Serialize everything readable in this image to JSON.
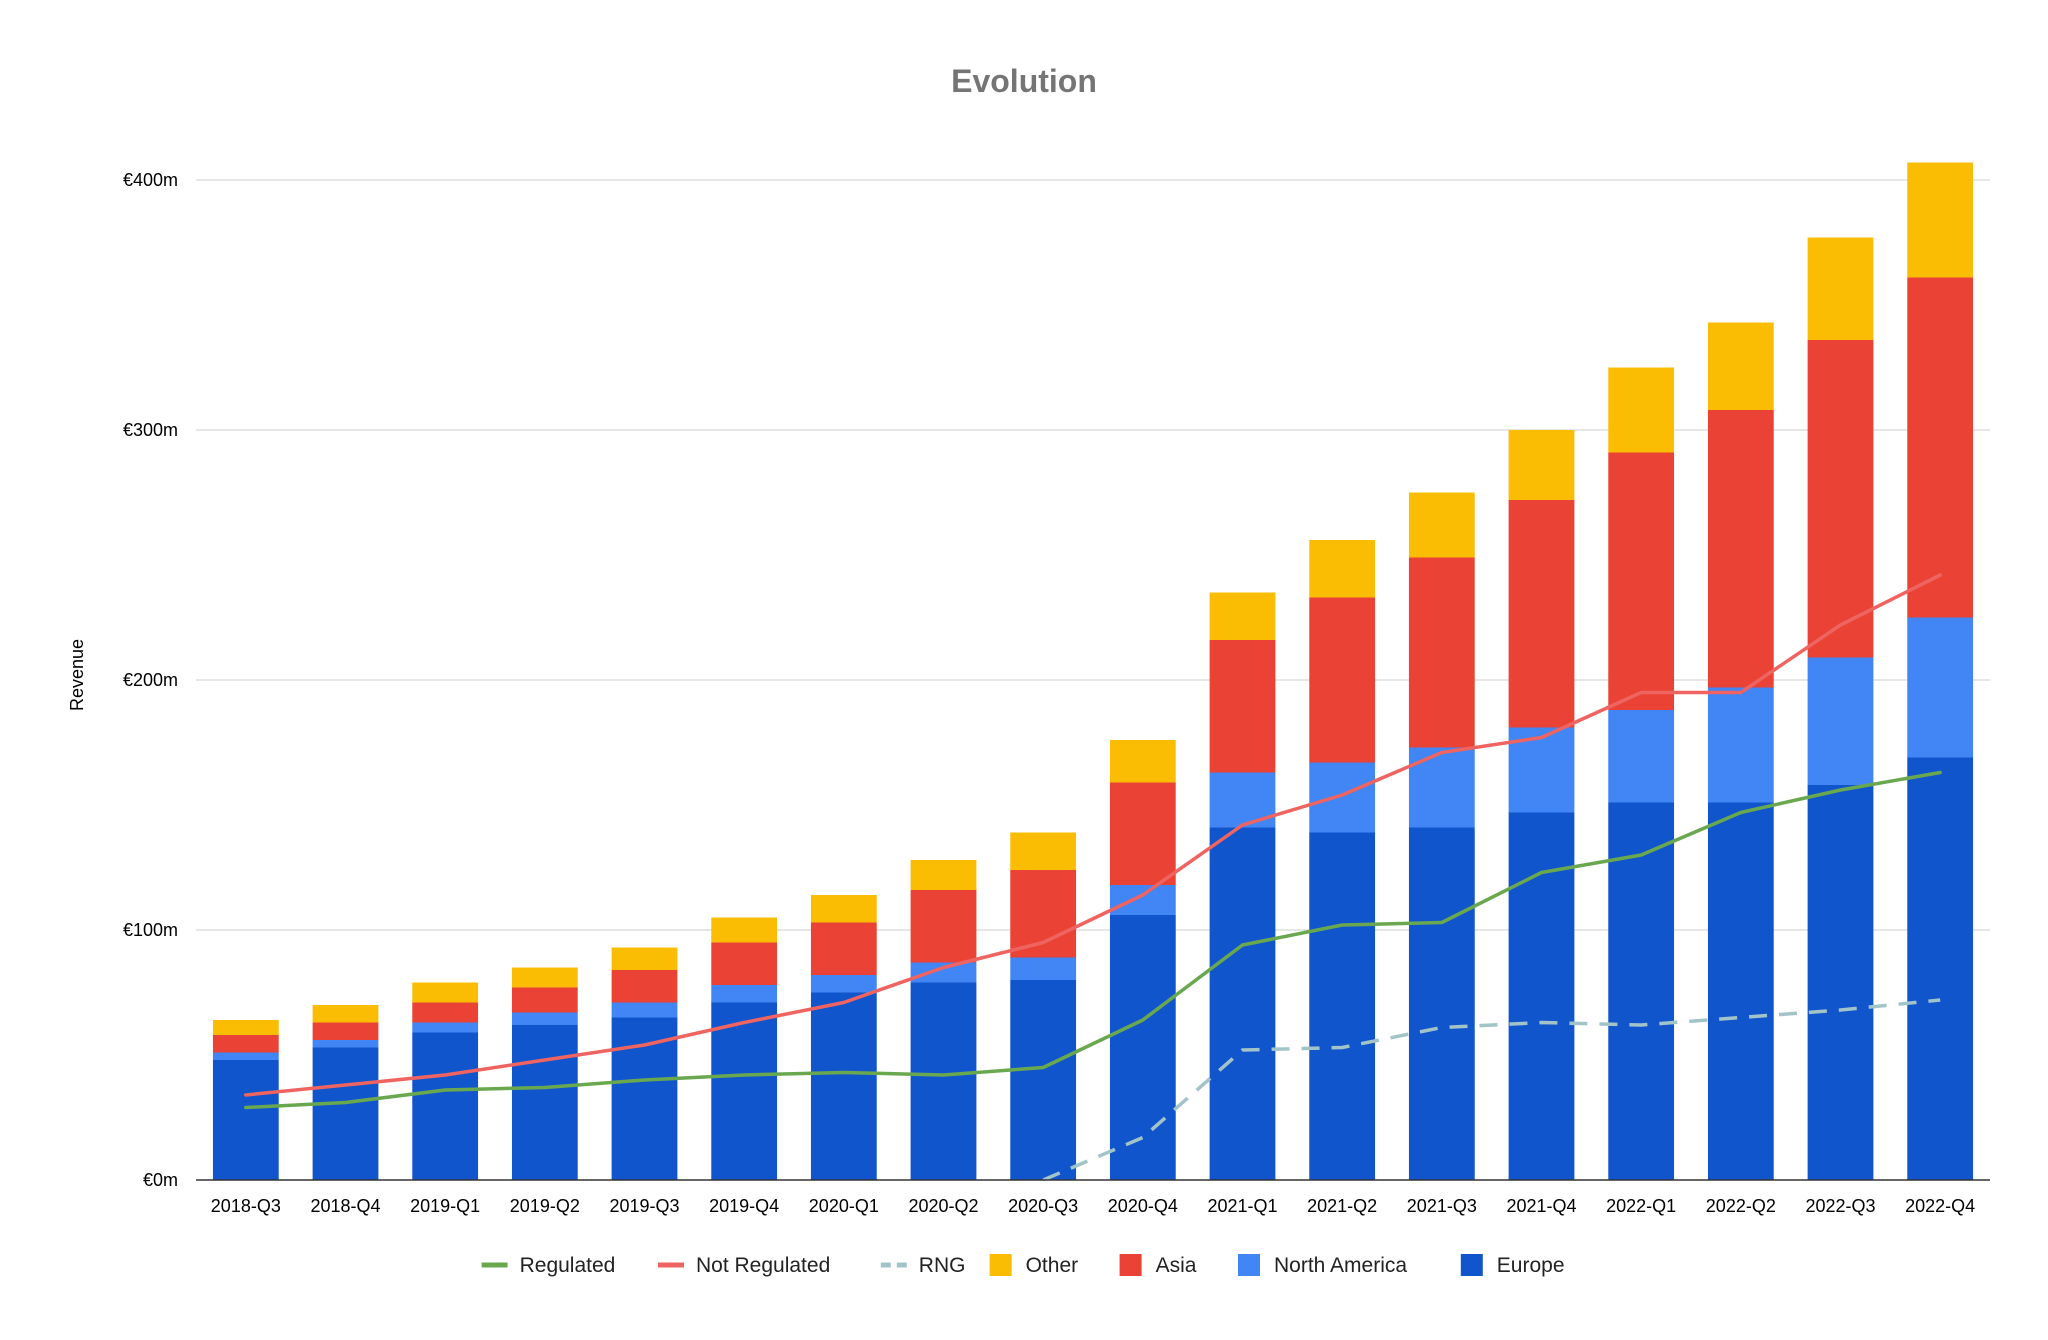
{
  "chart_data": {
    "type": "bar",
    "title": "Evolution",
    "ylabel": "Revenue",
    "xlabel": "",
    "ylim": [
      0,
      420
    ],
    "yticks": [
      0,
      100,
      200,
      300,
      400
    ],
    "ytick_labels": [
      "€0m",
      "€100m",
      "€200m",
      "€300m",
      "€400m"
    ],
    "grid": true,
    "legend_position": "bottom",
    "categories": [
      "2018-Q3",
      "2018-Q4",
      "2019-Q1",
      "2019-Q2",
      "2019-Q3",
      "2019-Q4",
      "2020-Q1",
      "2020-Q2",
      "2020-Q3",
      "2020-Q4",
      "2021-Q1",
      "2021-Q2",
      "2021-Q3",
      "2021-Q4",
      "2022-Q1",
      "2022-Q2",
      "2022-Q3",
      "2022-Q4"
    ],
    "stacked_series": [
      {
        "name": "Europe",
        "color": "#1155cc",
        "values": [
          48,
          53,
          59,
          62,
          65,
          71,
          75,
          79,
          80,
          106,
          141,
          139,
          141,
          147,
          151,
          151,
          158,
          169
        ]
      },
      {
        "name": "North America",
        "color": "#4285f4",
        "values": [
          3,
          3,
          4,
          5,
          6,
          7,
          7,
          8,
          9,
          12,
          22,
          28,
          32,
          34,
          37,
          46,
          51,
          56
        ]
      },
      {
        "name": "Asia",
        "color": "#ea4335",
        "values": [
          7,
          7,
          8,
          10,
          13,
          17,
          21,
          29,
          35,
          41,
          53,
          66,
          76,
          91,
          103,
          111,
          127,
          136
        ]
      },
      {
        "name": "Other",
        "color": "#fbbc04",
        "values": [
          6,
          7,
          8,
          8,
          9,
          10,
          11,
          12,
          15,
          17,
          19,
          23,
          26,
          28,
          34,
          35,
          41,
          46
        ]
      }
    ],
    "line_series": [
      {
        "name": "Regulated",
        "color": "#6aa84f",
        "dashed": false,
        "start_index": 0,
        "values": [
          29,
          31,
          36,
          37,
          40,
          42,
          43,
          42,
          45,
          64,
          94,
          102,
          103,
          123,
          130,
          147,
          156,
          163
        ]
      },
      {
        "name": "Not Regulated",
        "color": "#ef6461",
        "dashed": false,
        "start_index": 0,
        "values": [
          34,
          38,
          42,
          48,
          54,
          63,
          71,
          85,
          95,
          114,
          142,
          154,
          171,
          177,
          195,
          195,
          222,
          242
        ]
      },
      {
        "name": "RNG",
        "color": "#a2c4c9",
        "dashed": true,
        "start_index": 8,
        "values": [
          0,
          17,
          52,
          53,
          61,
          63,
          62,
          65,
          68,
          72
        ]
      }
    ],
    "legend": [
      {
        "name": "Regulated",
        "kind": "line",
        "color": "#6aa84f"
      },
      {
        "name": "Not Regulated",
        "kind": "line",
        "color": "#ef6461"
      },
      {
        "name": "RNG",
        "kind": "dash",
        "color": "#a2c4c9"
      },
      {
        "name": "Other",
        "kind": "box",
        "color": "#fbbc04"
      },
      {
        "name": "Asia",
        "kind": "box",
        "color": "#ea4335"
      },
      {
        "name": "North America",
        "kind": "box",
        "color": "#4285f4"
      },
      {
        "name": "Europe",
        "kind": "box",
        "color": "#1155cc"
      }
    ]
  }
}
